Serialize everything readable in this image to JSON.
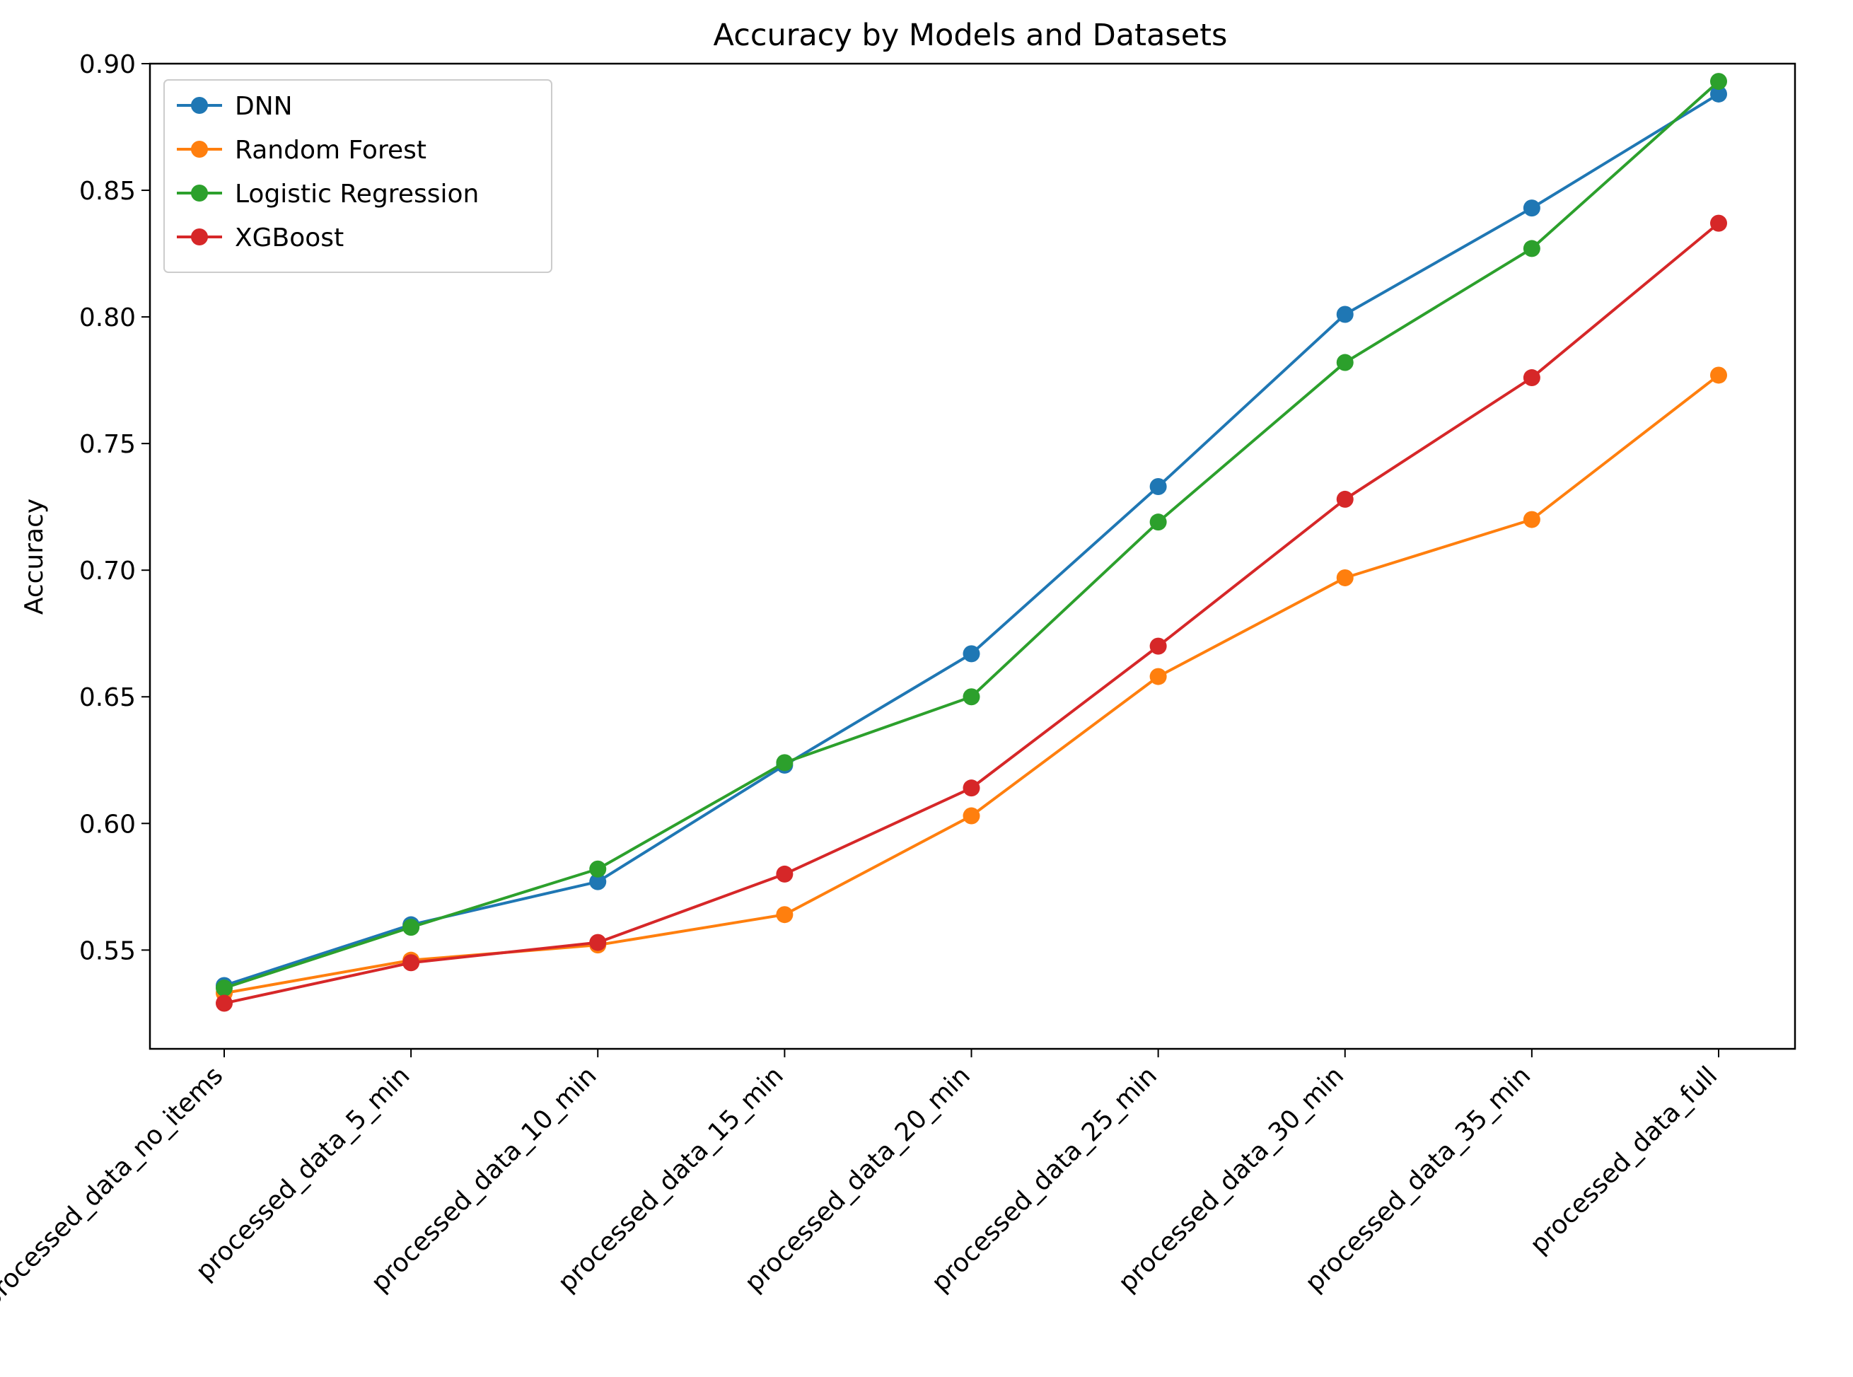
{
  "chart_data": {
    "type": "line",
    "title": "Accuracy by Models and Datasets",
    "xlabel": "",
    "ylabel": "Accuracy",
    "categories": [
      "processed_data_no_items",
      "processed_data_5_min",
      "processed_data_10_min",
      "processed_data_15_min",
      "processed_data_20_min",
      "processed_data_25_min",
      "processed_data_30_min",
      "processed_data_35_min",
      "processed_data_full"
    ],
    "yticks": [
      "0.55",
      "0.60",
      "0.65",
      "0.70",
      "0.75",
      "0.80",
      "0.85",
      "0.90"
    ],
    "ylim": [
      0.511,
      0.9
    ],
    "grid": false,
    "legend_position": "upper-left",
    "series": [
      {
        "name": "DNN",
        "color": "#1f77b4",
        "values": [
          0.536,
          0.56,
          0.577,
          0.623,
          0.667,
          0.733,
          0.801,
          0.843,
          0.888
        ]
      },
      {
        "name": "Random Forest",
        "color": "#ff7f0e",
        "values": [
          0.533,
          0.546,
          0.552,
          0.564,
          0.603,
          0.658,
          0.697,
          0.72,
          0.777
        ]
      },
      {
        "name": "Logistic Regression",
        "color": "#2ca02c",
        "values": [
          0.535,
          0.559,
          0.582,
          0.624,
          0.65,
          0.719,
          0.782,
          0.827,
          0.893
        ]
      },
      {
        "name": "XGBoost",
        "color": "#d62728",
        "values": [
          0.529,
          0.545,
          0.553,
          0.58,
          0.614,
          0.67,
          0.728,
          0.776,
          0.837
        ]
      }
    ]
  }
}
